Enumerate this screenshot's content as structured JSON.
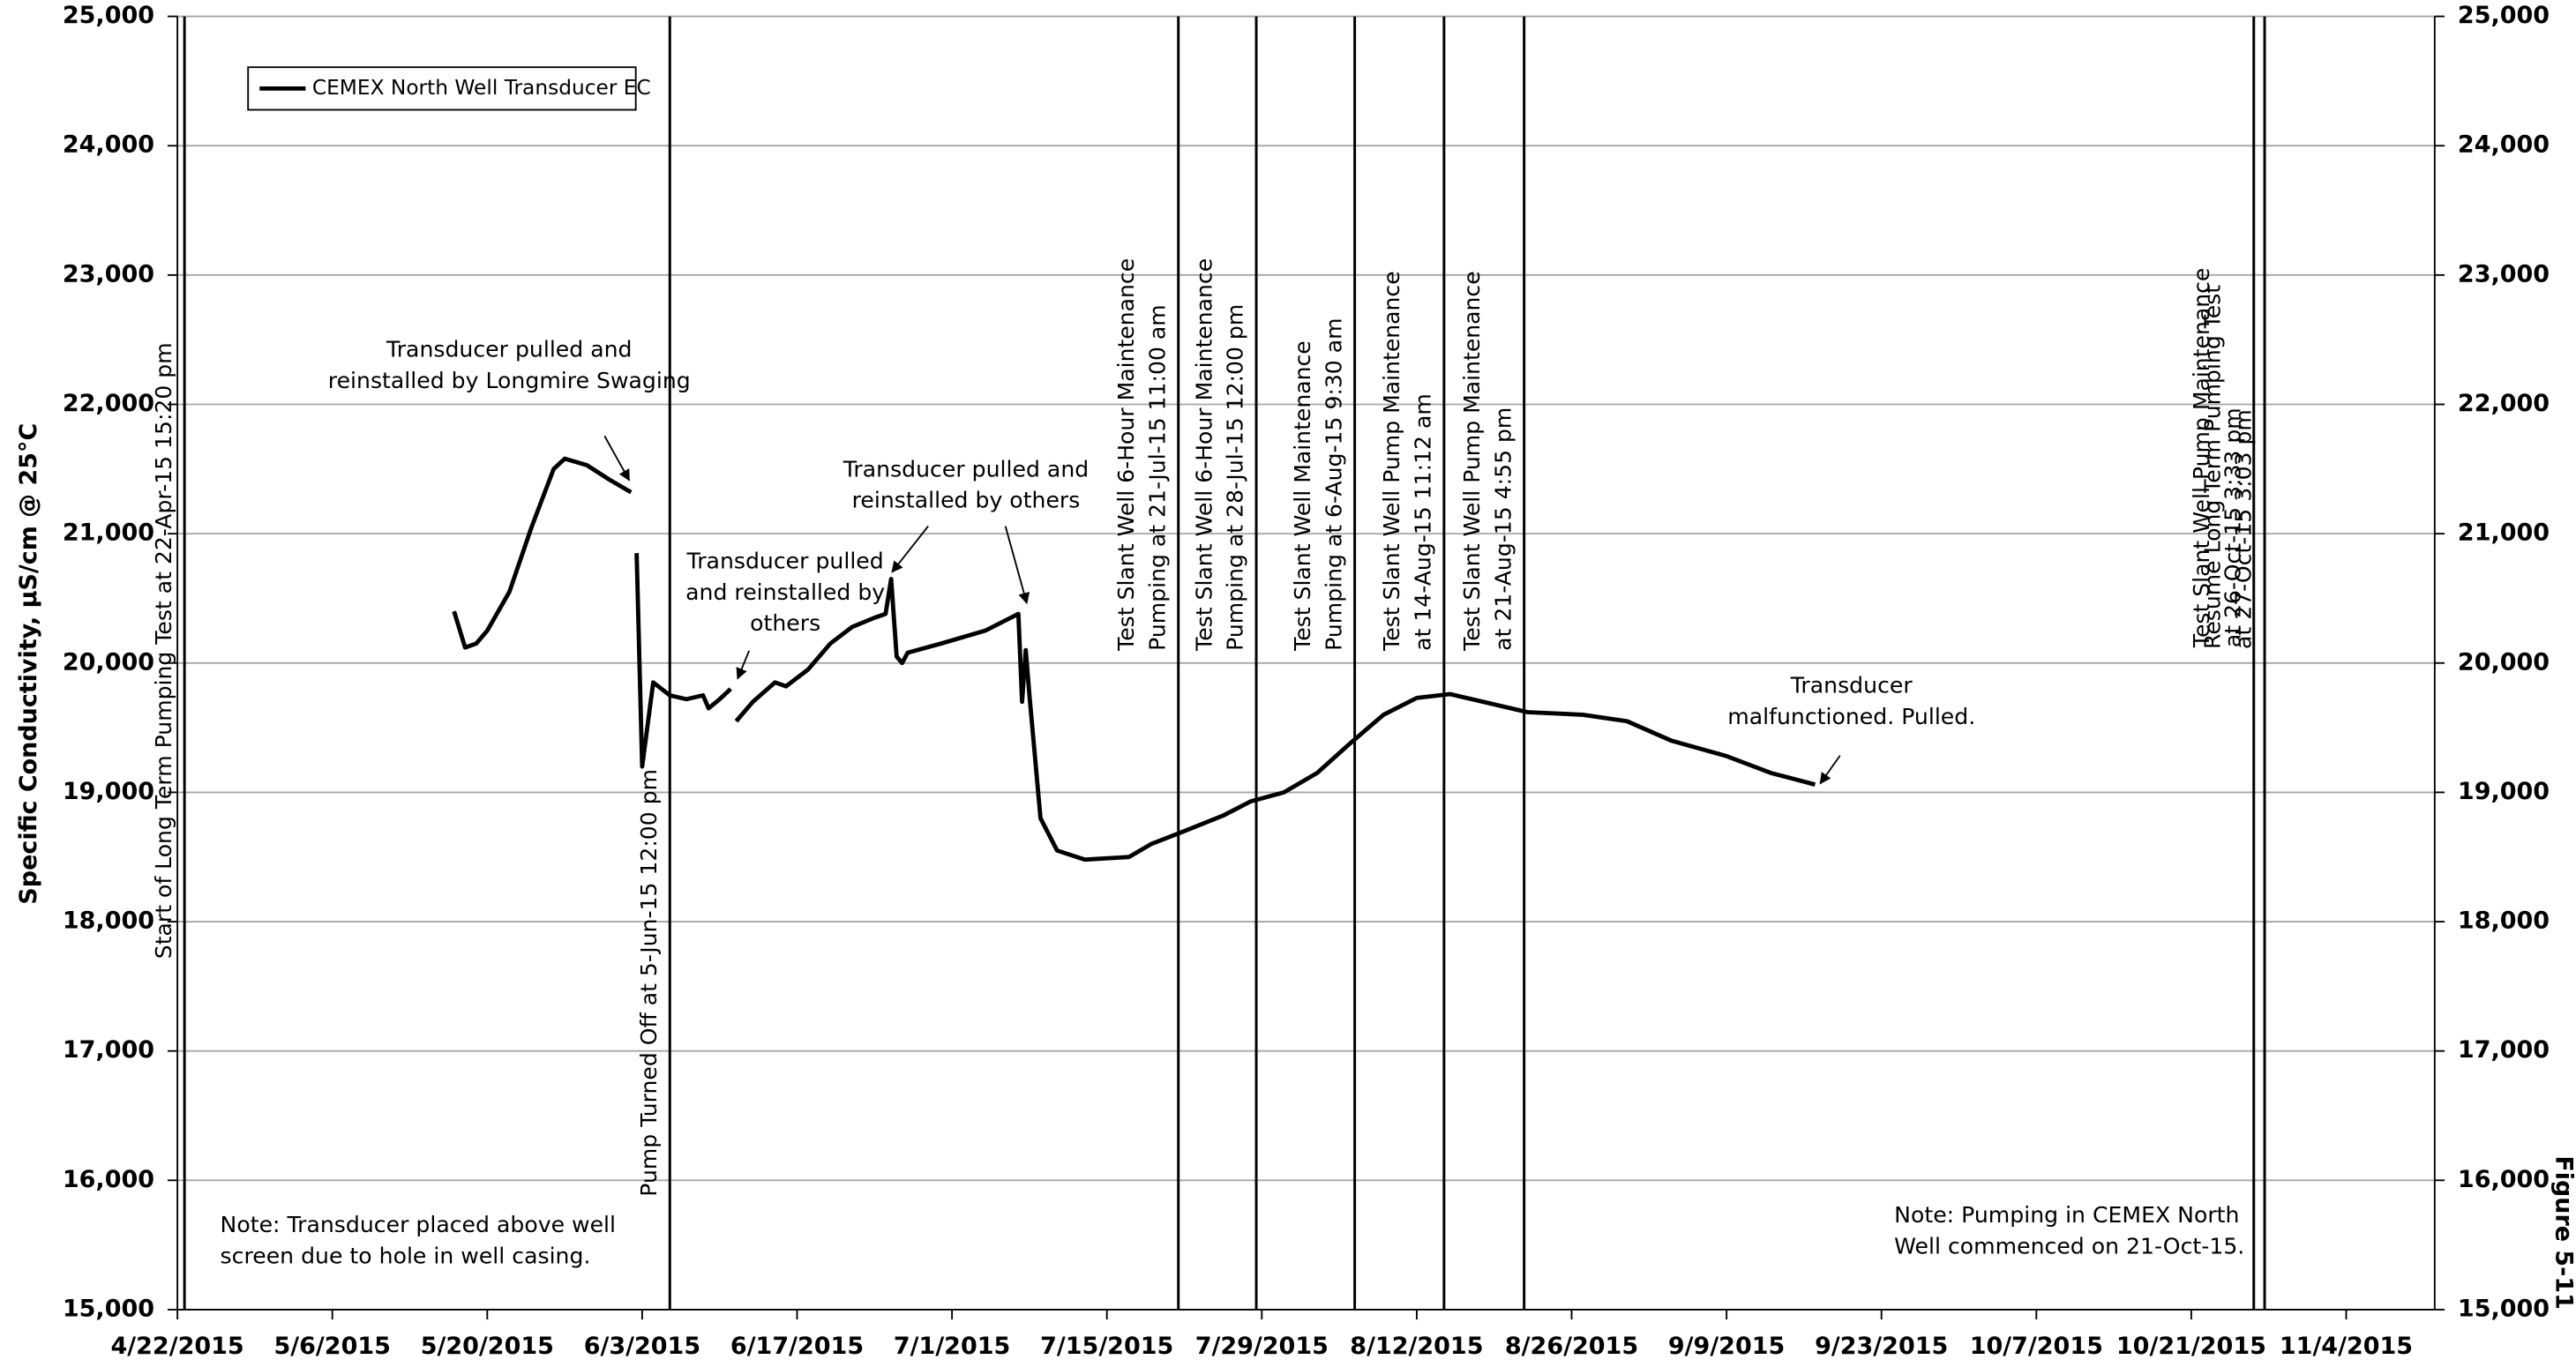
{
  "chart_data": {
    "type": "line",
    "y_label": "Specific Conductivity, µS/cm @ 25°C",
    "figure_label": "Figure 5-11",
    "xlim": [
      "2015-04-22",
      "2015-11-12"
    ],
    "xticks": [
      {
        "value": "2015-04-22",
        "label": "4/22/2015"
      },
      {
        "value": "2015-05-06",
        "label": "5/6/2015"
      },
      {
        "value": "2015-05-20",
        "label": "5/20/2015"
      },
      {
        "value": "2015-06-03",
        "label": "6/3/2015"
      },
      {
        "value": "2015-06-17",
        "label": "6/17/2015"
      },
      {
        "value": "2015-07-01",
        "label": "7/1/2015"
      },
      {
        "value": "2015-07-15",
        "label": "7/15/2015"
      },
      {
        "value": "2015-07-29",
        "label": "7/29/2015"
      },
      {
        "value": "2015-08-12",
        "label": "8/12/2015"
      },
      {
        "value": "2015-08-26",
        "label": "8/26/2015"
      },
      {
        "value": "2015-09-09",
        "label": "9/9/2015"
      },
      {
        "value": "2015-09-23",
        "label": "9/23/2015"
      },
      {
        "value": "2015-10-07",
        "label": "10/7/2015"
      },
      {
        "value": "2015-10-21",
        "label": "10/21/2015"
      },
      {
        "value": "2015-11-04",
        "label": "11/4/2015"
      }
    ],
    "ylim": [
      15000,
      25000
    ],
    "yticks": [
      {
        "value": 15000,
        "label": "15,000"
      },
      {
        "value": 16000,
        "label": "16,000"
      },
      {
        "value": 17000,
        "label": "17,000"
      },
      {
        "value": 18000,
        "label": "18,000"
      },
      {
        "value": 19000,
        "label": "19,000"
      },
      {
        "value": 20000,
        "label": "20,000"
      },
      {
        "value": 21000,
        "label": "21,000"
      },
      {
        "value": 22000,
        "label": "22,000"
      },
      {
        "value": 23000,
        "label": "23,000"
      },
      {
        "value": 24000,
        "label": "24,000"
      },
      {
        "value": 25000,
        "label": "25,000"
      }
    ],
    "y2lim": [
      15000,
      25000
    ],
    "y2ticks": [
      {
        "value": 15000,
        "label": "15,000"
      },
      {
        "value": 16000,
        "label": "16,000"
      },
      {
        "value": 17000,
        "label": "17,000"
      },
      {
        "value": 18000,
        "label": "18,000"
      },
      {
        "value": 19000,
        "label": "19,000"
      },
      {
        "value": 20000,
        "label": "20,000"
      },
      {
        "value": 21000,
        "label": "21,000"
      },
      {
        "value": 22000,
        "label": "22,000"
      },
      {
        "value": 23000,
        "label": "23,000"
      },
      {
        "value": 24000,
        "label": "24,000"
      },
      {
        "value": 25000,
        "label": "25,000"
      }
    ],
    "grid": true,
    "legend": "upper left",
    "x": [
      "2015-05-17",
      "2015-05-18",
      "2015-05-19",
      "2015-05-20",
      "2015-05-22",
      "2015-05-24",
      "2015-05-26",
      "2015-05-27",
      "2015-05-29",
      "2015-05-31",
      "2015-06-02",
      "2015-06-02T06:00",
      "2015-06-02T12:00",
      "2015-06-03",
      "2015-06-04",
      "2015-06-05T12:00",
      "2015-06-07",
      "2015-06-08T12:00",
      "2015-06-09",
      "2015-06-10",
      "2015-06-11",
      "2015-06-11T06:00",
      "2015-06-11T12:00",
      "2015-06-13",
      "2015-06-15",
      "2015-06-16",
      "2015-06-18",
      "2015-06-20",
      "2015-06-22",
      "2015-06-24",
      "2015-06-25",
      "2015-06-25T12:00",
      "2015-06-26",
      "2015-06-26T12:00",
      "2015-06-27",
      "2015-06-30",
      "2015-07-04",
      "2015-07-07",
      "2015-07-07T08:00",
      "2015-07-07T16:00",
      "2015-07-08",
      "2015-07-09",
      "2015-07-10T12:00",
      "2015-07-13",
      "2015-07-17",
      "2015-07-19",
      "2015-07-22",
      "2015-07-25T12:00",
      "2015-07-28",
      "2015-07-31",
      "2015-08-03",
      "2015-08-06",
      "2015-08-09",
      "2015-08-12",
      "2015-08-15",
      "2015-08-18",
      "2015-08-22",
      "2015-08-27",
      "2015-08-31",
      "2015-09-04",
      "2015-09-09",
      "2015-09-13",
      "2015-09-17"
    ],
    "series": [
      {
        "name": "CEMEX North Well Transducer EC",
        "color": "#000000",
        "values": [
          20400,
          20120,
          20150,
          20250,
          20550,
          21050,
          21500,
          21580,
          21530,
          21420,
          21320,
          null,
          20850,
          19200,
          19850,
          19750,
          19720,
          19750,
          19650,
          19720,
          19800,
          null,
          19550,
          19700,
          19850,
          19820,
          19950,
          20150,
          20280,
          20350,
          20380,
          20650,
          20050,
          20000,
          20080,
          20150,
          20250,
          20380,
          19700,
          20100,
          19750,
          18800,
          18550,
          18480,
          18500,
          18600,
          18700,
          18820,
          18930,
          19000,
          19150,
          19380,
          19600,
          19730,
          19760,
          19700,
          19620,
          19600,
          19550,
          19400,
          19280,
          19150,
          19060
        ]
      }
    ],
    "events": [
      {
        "date": "2015-04-22T15:20",
        "label": [
          "Start of Long Term Pumping Test at 22-Apr-15 15:20 pm"
        ]
      },
      {
        "date": "2015-06-05T12:00",
        "label": [
          "Pump Turned Off at 5-Jun-15 12:00 pm"
        ]
      },
      {
        "date": "2015-07-21T11:00",
        "label": [
          "Test Slant Well 6-Hour Maintenance",
          "Pumping at 21-Jul-15 11:00 am"
        ]
      },
      {
        "date": "2015-07-28T12:00",
        "label": [
          "Test Slant Well 6-Hour Maintenance",
          "Pumping at 28-Jul-15 12:00 pm"
        ]
      },
      {
        "date": "2015-08-06T09:30",
        "label": [
          "Test Slant Well Maintenance",
          "Pumping at 6-Aug-15 9:30 am"
        ]
      },
      {
        "date": "2015-08-14T11:12",
        "label": [
          "Test Slant Well Pump Maintenance",
          "at 14-Aug-15 11:12 am"
        ]
      },
      {
        "date": "2015-08-21T16:55",
        "label": [
          "Test Slant Well Pump Maintenance",
          "at 21-Aug-15 4:55 pm"
        ]
      },
      {
        "date": "2015-10-26T15:33",
        "label": [
          "Test Slant Well Pump Maintenance",
          "at 26-Oct-15 3:33 pm"
        ]
      },
      {
        "date": "2015-10-27T15:03",
        "label": [
          "Resume Long Term Pumping Test",
          "at 27-Oct-15 3:03 pm"
        ]
      }
    ],
    "annotations": [
      {
        "lines": [
          "Transducer pulled and",
          "reinstalled by Longmire Swaging"
        ]
      },
      {
        "lines": [
          "Transducer pulled",
          "and reinstalled by",
          "others"
        ]
      },
      {
        "lines": [
          "Transducer pulled and",
          "reinstalled by others"
        ]
      },
      {
        "lines": [
          "Transducer",
          "malfunctioned. Pulled."
        ]
      },
      {
        "lines": [
          "Note: Transducer placed above well",
          "screen due to hole in well casing."
        ]
      },
      {
        "lines": [
          "Note: Pumping in CEMEX North",
          "Well commenced on 21-Oct-15."
        ]
      }
    ]
  }
}
